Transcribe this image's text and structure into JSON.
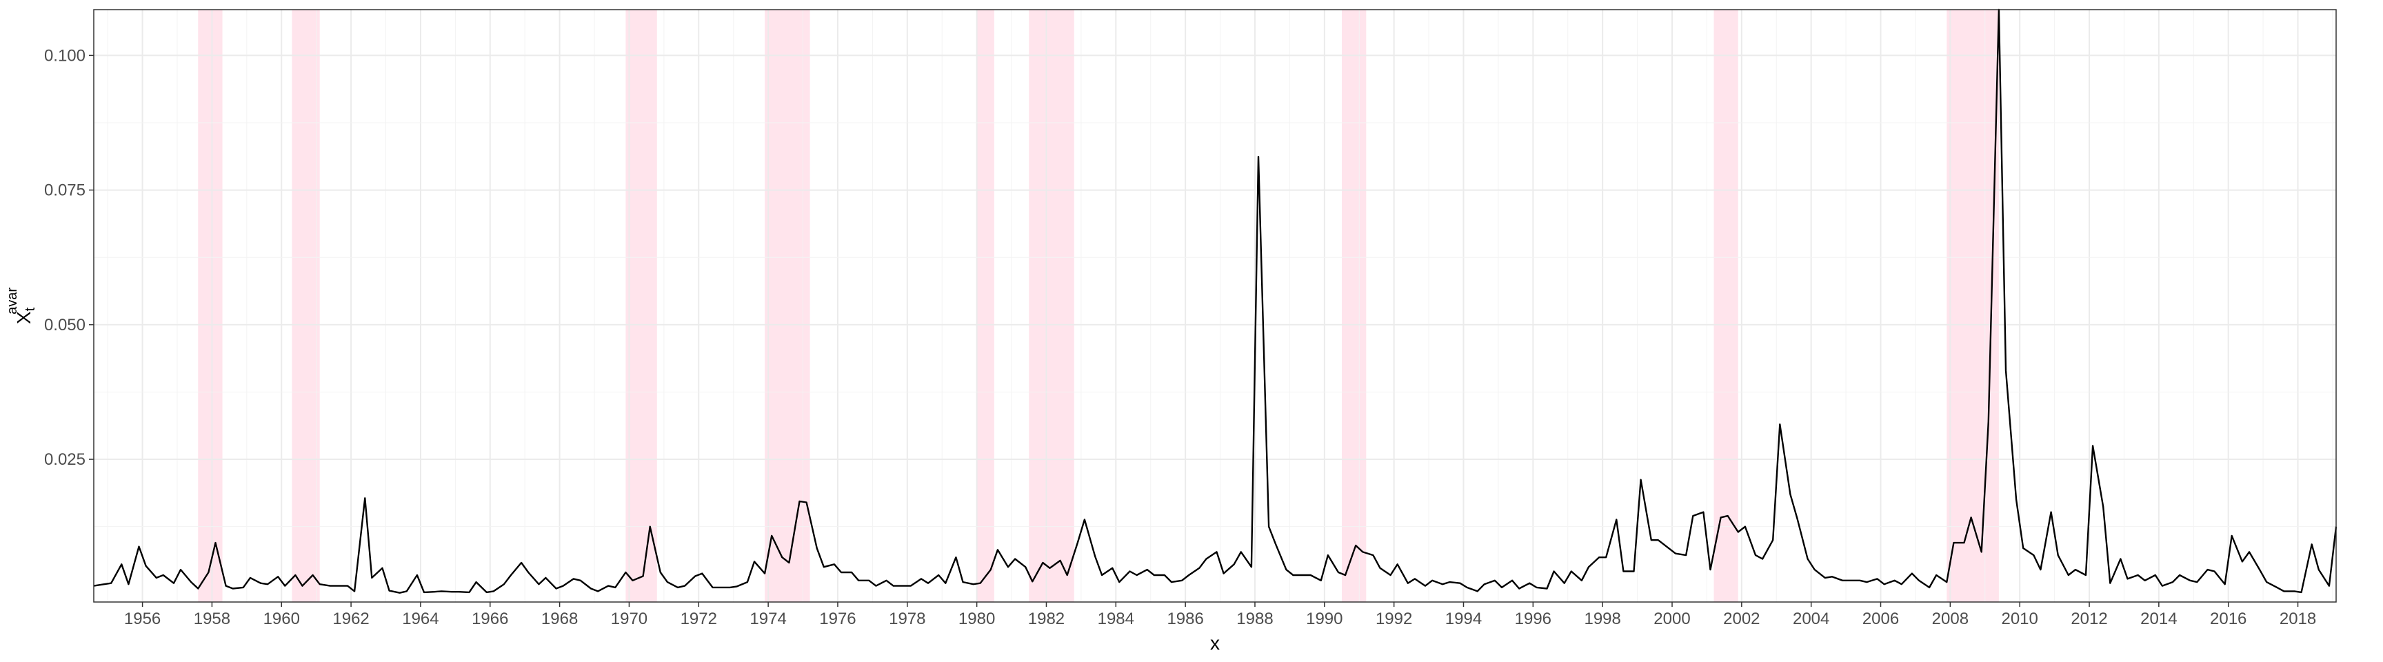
{
  "chart_data": {
    "type": "line",
    "xlabel": "x",
    "ylabel": {
      "base": "X",
      "subscript": "t",
      "superscript": "avar"
    },
    "xlim": [
      1954.6,
      2019.1
    ],
    "ylim": [
      -0.0015,
      0.1085
    ],
    "x_ticks": [
      1956,
      1958,
      1960,
      1962,
      1964,
      1966,
      1968,
      1970,
      1972,
      1974,
      1976,
      1978,
      1980,
      1982,
      1984,
      1986,
      1988,
      1990,
      1992,
      1994,
      1996,
      1998,
      2000,
      2002,
      2004,
      2006,
      2008,
      2010,
      2012,
      2014,
      2016,
      2018
    ],
    "y_ticks": [
      0.025,
      0.05,
      0.075,
      0.1
    ],
    "y_tick_labels": [
      "0.025",
      "0.050",
      "0.075",
      "0.100"
    ],
    "grid": true,
    "line_color": "#000000",
    "shading_color": "#ffe4ec",
    "recessions": [
      [
        1957.6,
        1958.3
      ],
      [
        1960.3,
        1961.1
      ],
      [
        1969.9,
        1970.8
      ],
      [
        1973.9,
        1975.2
      ],
      [
        1980.0,
        1980.5
      ],
      [
        1981.5,
        1982.8
      ],
      [
        1990.5,
        1991.2
      ],
      [
        2001.2,
        2001.9
      ],
      [
        2007.9,
        2009.4
      ]
    ],
    "series": [
      {
        "x": [
          1954.6,
          1954.9,
          1955.1,
          1955.4,
          1955.6,
          1955.9,
          1956.1,
          1956.4,
          1956.6,
          1956.9,
          1957.1,
          1957.4,
          1957.6,
          1957.9,
          1958.1,
          1958.4,
          1958.6,
          1958.9,
          1959.1,
          1959.4,
          1959.6,
          1959.9,
          1960.1,
          1960.4,
          1960.6,
          1960.9,
          1961.1,
          1961.4,
          1961.6,
          1961.9,
          1962.1,
          1962.4,
          1962.6,
          1962.9,
          1963.1,
          1963.4,
          1963.6,
          1963.9,
          1964.1,
          1964.4,
          1964.6,
          1964.9,
          1965.1,
          1965.4,
          1965.6,
          1965.9,
          1966.1,
          1966.4,
          1966.6,
          1966.9,
          1967.1,
          1967.4,
          1967.6,
          1967.9,
          1968.1,
          1968.4,
          1968.6,
          1968.9,
          1969.1,
          1969.4,
          1969.6,
          1969.9,
          1970.1,
          1970.4,
          1970.6,
          1970.9,
          1971.1,
          1971.4,
          1971.6,
          1971.9,
          1972.1,
          1972.4,
          1972.6,
          1972.9,
          1973.1,
          1973.4,
          1973.6,
          1973.9,
          1974.1,
          1974.4,
          1974.6,
          1974.9,
          1975.1,
          1975.4,
          1975.6,
          1975.9,
          1976.1,
          1976.4,
          1976.6,
          1976.9,
          1977.1,
          1977.4,
          1977.6,
          1977.9,
          1978.1,
          1978.4,
          1978.6,
          1978.9,
          1979.1,
          1979.4,
          1979.6,
          1979.9,
          1980.1,
          1980.4,
          1980.6,
          1980.9,
          1981.1,
          1981.4,
          1981.6,
          1981.9,
          1982.1,
          1982.4,
          1982.6,
          1982.9,
          1983.1,
          1983.4,
          1983.6,
          1983.9,
          1984.1,
          1984.4,
          1984.6,
          1984.9,
          1985.1,
          1985.4,
          1985.6,
          1985.9,
          1986.1,
          1986.4,
          1986.6,
          1986.9,
          1987.1,
          1987.4,
          1987.6,
          1987.9,
          1988.1,
          1988.4,
          1988.6,
          1988.9,
          1989.1,
          1989.4,
          1989.6,
          1989.9,
          1990.1,
          1990.4,
          1990.6,
          1990.9,
          1991.1,
          1991.4,
          1991.6,
          1991.9,
          1992.1,
          1992.4,
          1992.6,
          1992.9,
          1993.1,
          1993.4,
          1993.6,
          1993.9,
          1994.1,
          1994.4,
          1994.6,
          1994.9,
          1995.1,
          1995.4,
          1995.6,
          1995.9,
          1996.1,
          1996.4,
          1996.6,
          1996.9,
          1997.1,
          1997.4,
          1997.6,
          1997.9,
          1998.1,
          1998.4,
          1998.6,
          1998.9,
          1999.1,
          1999.4,
          1999.6,
          1999.9,
          2000.1,
          2000.4,
          2000.6,
          2000.9,
          2001.1,
          2001.4,
          2001.6,
          2001.9,
          2002.1,
          2002.4,
          2002.6,
          2002.9,
          2003.1,
          2003.4,
          2003.6,
          2003.9,
          2004.1,
          2004.4,
          2004.6,
          2004.9,
          2005.1,
          2005.4,
          2005.6,
          2005.9,
          2006.1,
          2006.4,
          2006.6,
          2006.9,
          2007.1,
          2007.4,
          2007.6,
          2007.9,
          2008.1,
          2008.4,
          2008.6,
          2008.9,
          2009.1,
          2009.4,
          2009.6,
          2009.9,
          2010.1,
          2010.4,
          2010.6,
          2010.9,
          2011.1,
          2011.4,
          2011.6,
          2011.9,
          2012.1,
          2012.4,
          2012.6,
          2012.9,
          2013.1,
          2013.4,
          2013.6,
          2013.9,
          2014.1,
          2014.4,
          2014.6,
          2014.9,
          2015.1,
          2015.4,
          2015.6,
          2015.9,
          2016.1,
          2016.4,
          2016.6,
          2016.9,
          2017.1,
          2017.4,
          2017.6,
          2017.9,
          2018.1,
          2018.4,
          2018.6,
          2018.9,
          2019.1
        ],
        "y": [
          0.0015,
          0.0018,
          0.002,
          0.0055,
          0.0018,
          0.0088,
          0.0052,
          0.003,
          0.0035,
          0.002,
          0.0045,
          0.0022,
          0.001,
          0.004,
          0.0095,
          0.0015,
          0.001,
          0.0012,
          0.003,
          0.002,
          0.0018,
          0.0032,
          0.0015,
          0.0035,
          0.0015,
          0.0035,
          0.0018,
          0.0015,
          0.0015,
          0.0015,
          0.0005,
          0.0178,
          0.003,
          0.0048,
          0.0006,
          0.0002,
          0.0005,
          0.0035,
          0.0003,
          0.0004,
          0.0005,
          0.0004,
          0.0004,
          0.0003,
          0.0022,
          0.0003,
          0.0005,
          0.0018,
          0.0035,
          0.0058,
          0.004,
          0.0018,
          0.003,
          0.001,
          0.0015,
          0.0028,
          0.0025,
          0.001,
          0.0005,
          0.0015,
          0.0012,
          0.004,
          0.0025,
          0.0033,
          0.0125,
          0.004,
          0.0022,
          0.0012,
          0.0015,
          0.0033,
          0.0038,
          0.0012,
          0.0012,
          0.0012,
          0.0014,
          0.0022,
          0.006,
          0.0038,
          0.0108,
          0.0068,
          0.0058,
          0.0172,
          0.017,
          0.0085,
          0.005,
          0.0055,
          0.004,
          0.004,
          0.0025,
          0.0025,
          0.0015,
          0.0025,
          0.0015,
          0.0015,
          0.0015,
          0.0028,
          0.002,
          0.0035,
          0.002,
          0.0068,
          0.0022,
          0.0018,
          0.002,
          0.0045,
          0.0082,
          0.005,
          0.0065,
          0.005,
          0.0023,
          0.0058,
          0.0048,
          0.0062,
          0.0035,
          0.0095,
          0.0138,
          0.007,
          0.0035,
          0.0048,
          0.0022,
          0.0042,
          0.0035,
          0.0045,
          0.0035,
          0.0035,
          0.0022,
          0.0025,
          0.0035,
          0.0048,
          0.0065,
          0.0078,
          0.0038,
          0.0055,
          0.0078,
          0.005,
          0.0812,
          0.0125,
          0.0092,
          0.0045,
          0.0035,
          0.0035,
          0.0035,
          0.0025,
          0.0072,
          0.004,
          0.0035,
          0.009,
          0.0078,
          0.0072,
          0.0048,
          0.0035,
          0.0055,
          0.002,
          0.0028,
          0.0015,
          0.0025,
          0.0018,
          0.0022,
          0.002,
          0.0012,
          0.0005,
          0.0018,
          0.0025,
          0.0012,
          0.0025,
          0.001,
          0.002,
          0.0012,
          0.001,
          0.0042,
          0.002,
          0.0042,
          0.0025,
          0.005,
          0.0068,
          0.0068,
          0.0138,
          0.0042,
          0.0042,
          0.0212,
          0.01,
          0.01,
          0.0085,
          0.0075,
          0.0072,
          0.0145,
          0.0152,
          0.0045,
          0.0142,
          0.0145,
          0.0115,
          0.0125,
          0.0072,
          0.0065,
          0.01,
          0.0315,
          0.0185,
          0.014,
          0.0065,
          0.0045,
          0.003,
          0.0032,
          0.0025,
          0.0025,
          0.0025,
          0.0022,
          0.0028,
          0.0018,
          0.0025,
          0.0018,
          0.0038,
          0.0025,
          0.0012,
          0.0035,
          0.0022,
          0.0095,
          0.0095,
          0.0142,
          0.0078,
          0.032,
          0.1085,
          0.0415,
          0.0175,
          0.0085,
          0.0072,
          0.0045,
          0.0152,
          0.0072,
          0.0035,
          0.0045,
          0.0035,
          0.0275,
          0.0162,
          0.002,
          0.0065,
          0.0028,
          0.0035,
          0.0025,
          0.0035,
          0.0015,
          0.0022,
          0.0035,
          0.0025,
          0.0022,
          0.0045,
          0.0042,
          0.0018,
          0.0108,
          0.006,
          0.0078,
          0.0045,
          0.0022,
          0.0012,
          0.0005,
          0.0005,
          0.0003,
          0.0092,
          0.0045,
          0.0015,
          0.0125
        ]
      }
    ]
  }
}
